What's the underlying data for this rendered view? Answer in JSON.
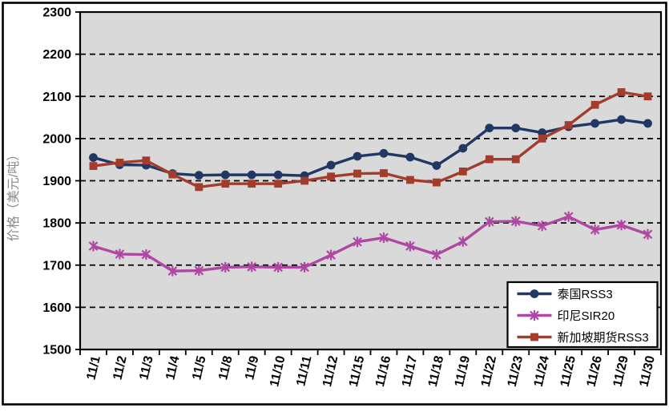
{
  "chart_data": {
    "type": "line",
    "title": "",
    "ylabel": "价格（美元/吨）",
    "xlabel": "",
    "ylim": [
      1500,
      2300
    ],
    "ytick_step": 100,
    "grid": "dashed-horizontal-black",
    "plot_bg": "#D9D9D9",
    "legend_position": "bottom-right",
    "categories": [
      "11/1",
      "11/2",
      "11/3",
      "11/4",
      "11/5",
      "11/8",
      "11/9",
      "11/10",
      "11/11",
      "11/12",
      "11/15",
      "11/16",
      "11/17",
      "11/18",
      "11/19",
      "11/22",
      "11/23",
      "11/24",
      "11/25",
      "11/26",
      "11/29",
      "11/30"
    ],
    "series": [
      {
        "name": "泰国RSS3",
        "color": "#1F3864",
        "marker": "circle",
        "values": [
          1955,
          1938,
          1937,
          1917,
          1913,
          1914,
          1914,
          1914,
          1912,
          1937,
          1958,
          1965,
          1956,
          1936,
          1977,
          2025,
          2025,
          2014,
          2028,
          2036,
          2045,
          2036
        ]
      },
      {
        "name": "印尼SIR20",
        "color": "#AE48A2",
        "marker": "asterisk",
        "values": [
          1745,
          1726,
          1725,
          1686,
          1687,
          1695,
          1696,
          1695,
          1695,
          1724,
          1755,
          1765,
          1745,
          1725,
          1756,
          1803,
          1804,
          1793,
          1815,
          1784,
          1795,
          1773
        ]
      },
      {
        "name": "新加坡期货RSS3",
        "color": "#A33C2C",
        "marker": "square",
        "values": [
          1935,
          1943,
          1948,
          1915,
          1885,
          1893,
          1893,
          1893,
          1900,
          1910,
          1917,
          1918,
          1902,
          1896,
          1922,
          1951,
          1951,
          2000,
          2032,
          2080,
          2110,
          2100
        ]
      }
    ]
  }
}
